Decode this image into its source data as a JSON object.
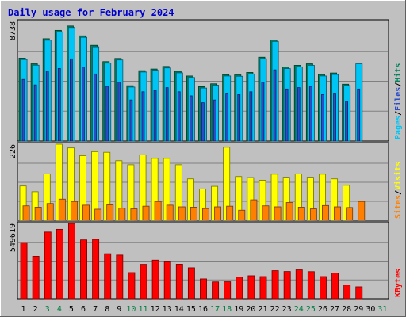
{
  "chart_data": {
    "type": "bar",
    "title": "Daily usage for February 2024",
    "weekend_days": [
      3,
      4,
      10,
      11,
      17,
      18,
      24,
      25,
      31
    ],
    "categories": [
      "1",
      "2",
      "3",
      "4",
      "5",
      "6",
      "7",
      "8",
      "9",
      "10",
      "11",
      "12",
      "13",
      "14",
      "15",
      "16",
      "17",
      "18",
      "19",
      "20",
      "21",
      "22",
      "23",
      "24",
      "25",
      "26",
      "27",
      "28",
      "29",
      "30",
      "31"
    ],
    "panels": [
      {
        "name": "hits-files-pages",
        "ymax_label": "8738",
        "ymax": 8738,
        "axis_labels": [
          "Pages",
          "Files",
          "Hits"
        ],
        "series": [
          {
            "name": "Hits",
            "color": "#00805c",
            "values": [
              6050,
              5640,
              7470,
              8080,
              8400,
              7680,
              6990,
              5800,
              6030,
              4040,
              5140,
              5260,
              5450,
              5090,
              4750,
              3970,
              4180,
              4850,
              4830,
              5010,
              6120,
              7380,
              5400,
              5530,
              5640,
              4860,
              4970,
              4150,
              null,
              null,
              null
            ]
          },
          {
            "name": "Files",
            "color": "#00c4f4",
            "values": [
              5950,
              5540,
              7360,
              7970,
              8290,
              7570,
              6880,
              5690,
              5920,
              3940,
              5040,
              5160,
              5340,
              4980,
              4640,
              3870,
              4080,
              4750,
              4730,
              4900,
              6010,
              7270,
              5290,
              5420,
              5530,
              4750,
              4860,
              4050,
              5640,
              null,
              null
            ]
          },
          {
            "name": "Pages",
            "color": "#2c4cc8",
            "values": [
              4500,
              4100,
              5100,
              5300,
              6000,
              5400,
              4900,
              4000,
              4300,
              3000,
              3600,
              3700,
              3900,
              3600,
              3300,
              2800,
              3000,
              3500,
              3400,
              3600,
              4300,
              5200,
              3800,
              3900,
              4000,
              3400,
              3500,
              2900,
              3800,
              null,
              null
            ]
          }
        ]
      },
      {
        "name": "visits-sites",
        "ymax_label": "226",
        "ymax": 226,
        "axis_labels": [
          "Sites",
          "Visits"
        ],
        "series": [
          {
            "name": "Visits",
            "color": "#ffff00",
            "values": [
              102,
              85,
              138,
              226,
              215,
              192,
              204,
              202,
              177,
              165,
              194,
              184,
              184,
              165,
              123,
              93,
              101,
              217,
              130,
              127,
              119,
              137,
              128,
              138,
              128,
              137,
              123,
              104,
              null,
              null,
              null
            ]
          },
          {
            "name": "Sites",
            "color": "#ff8000",
            "values": [
              43,
              39,
              50,
              63,
              56,
              45,
              33,
              46,
              36,
              34,
              42,
              56,
              45,
              40,
              39,
              35,
              40,
              42,
              30,
              61,
              43,
              40,
              53,
              39,
              34,
              44,
              40,
              38,
              56,
              null,
              null
            ]
          }
        ]
      },
      {
        "name": "kbytes",
        "ymax_label": "549619",
        "ymax": 549619,
        "axis_labels": [
          "KBytes"
        ],
        "series": [
          {
            "name": "KBytes",
            "color": "#ff0000",
            "values": [
              410000,
              310000,
              487000,
              507000,
              549619,
              430000,
              434000,
              329000,
              319000,
              191000,
              251000,
              282000,
              275000,
              252000,
              226000,
              145000,
              123000,
              124000,
              158000,
              168000,
              162000,
              205000,
              199000,
              211000,
              198000,
              162000,
              188000,
              100000,
              87000,
              null,
              null
            ]
          }
        ]
      }
    ]
  }
}
